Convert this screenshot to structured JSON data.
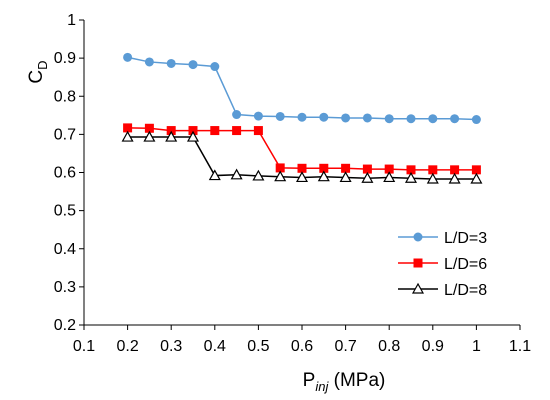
{
  "chart_data": {
    "type": "line",
    "x_axis": {
      "label_main": "P",
      "label_sub": "inj",
      "label_unit": " (MPa)",
      "min": 0.1,
      "max": 1.1,
      "ticks": [
        "0.1",
        "0.2",
        "0.3",
        "0.4",
        "0.5",
        "0.6",
        "0.7",
        "0.8",
        "0.9",
        "1",
        "1.1"
      ]
    },
    "y_axis": {
      "label_main": "C",
      "label_sub": "D",
      "min": 0.2,
      "max": 1,
      "ticks": [
        "0.2",
        "0.3",
        "0.4",
        "0.5",
        "0.6",
        "0.7",
        "0.8",
        "0.9",
        "1"
      ]
    },
    "grid": false,
    "legend_placement": "right-lower",
    "x": [
      0.2,
      0.25,
      0.3,
      0.35,
      0.4,
      0.45,
      0.5,
      0.55,
      0.6,
      0.65,
      0.7,
      0.75,
      0.8,
      0.85,
      0.9,
      0.95,
      1.0
    ],
    "series": [
      {
        "name": "L/D=3",
        "color": "#5B9BD5",
        "marker": "circle",
        "values": [
          0.902,
          0.89,
          0.886,
          0.883,
          0.878,
          0.752,
          0.748,
          0.747,
          0.745,
          0.745,
          0.743,
          0.743,
          0.741,
          0.741,
          0.741,
          0.741,
          0.739
        ]
      },
      {
        "name": "L/D=6",
        "color": "#FF0000",
        "marker": "square",
        "values": [
          0.717,
          0.716,
          0.71,
          0.71,
          0.71,
          0.71,
          0.71,
          0.612,
          0.611,
          0.611,
          0.611,
          0.609,
          0.609,
          0.607,
          0.607,
          0.607,
          0.607
        ]
      },
      {
        "name": "L/D=8",
        "color": "#000000",
        "marker": "triangle",
        "values": [
          0.693,
          0.693,
          0.693,
          0.693,
          0.592,
          0.594,
          0.591,
          0.589,
          0.587,
          0.589,
          0.587,
          0.585,
          0.587,
          0.585,
          0.583,
          0.583,
          0.583
        ]
      }
    ]
  }
}
